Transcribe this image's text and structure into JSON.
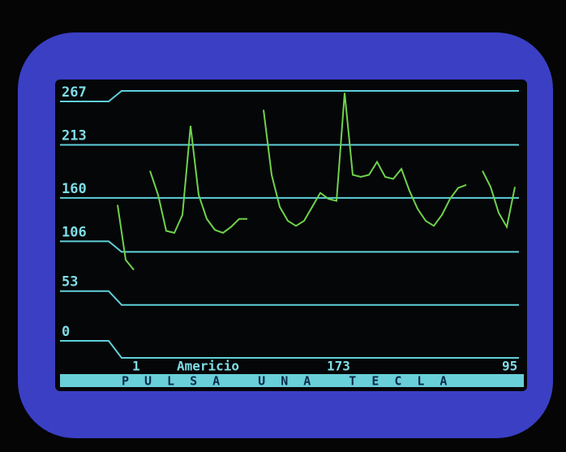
{
  "chart_data": {
    "type": "line",
    "ylim": [
      0,
      267
    ],
    "yticks": [
      0,
      53,
      106,
      160,
      213,
      267
    ],
    "grid": true,
    "color": "#6fd24c",
    "grid_color": "#5fcfd9",
    "values": [
      153,
      98,
      88,
      null,
      187,
      163,
      127,
      125,
      143,
      232,
      163,
      139,
      128,
      125,
      131,
      139,
      139,
      null,
      248,
      183,
      151,
      137,
      132,
      137,
      151,
      165,
      159,
      157,
      265,
      183,
      181,
      183,
      196,
      181,
      179,
      189,
      167,
      149,
      137,
      132,
      143,
      159,
      170,
      173,
      null,
      187,
      171,
      145,
      131,
      171
    ],
    "annotations": [
      "1",
      "Americio",
      "173",
      "95"
    ],
    "prompt": "PULSA UNA TECLA"
  }
}
